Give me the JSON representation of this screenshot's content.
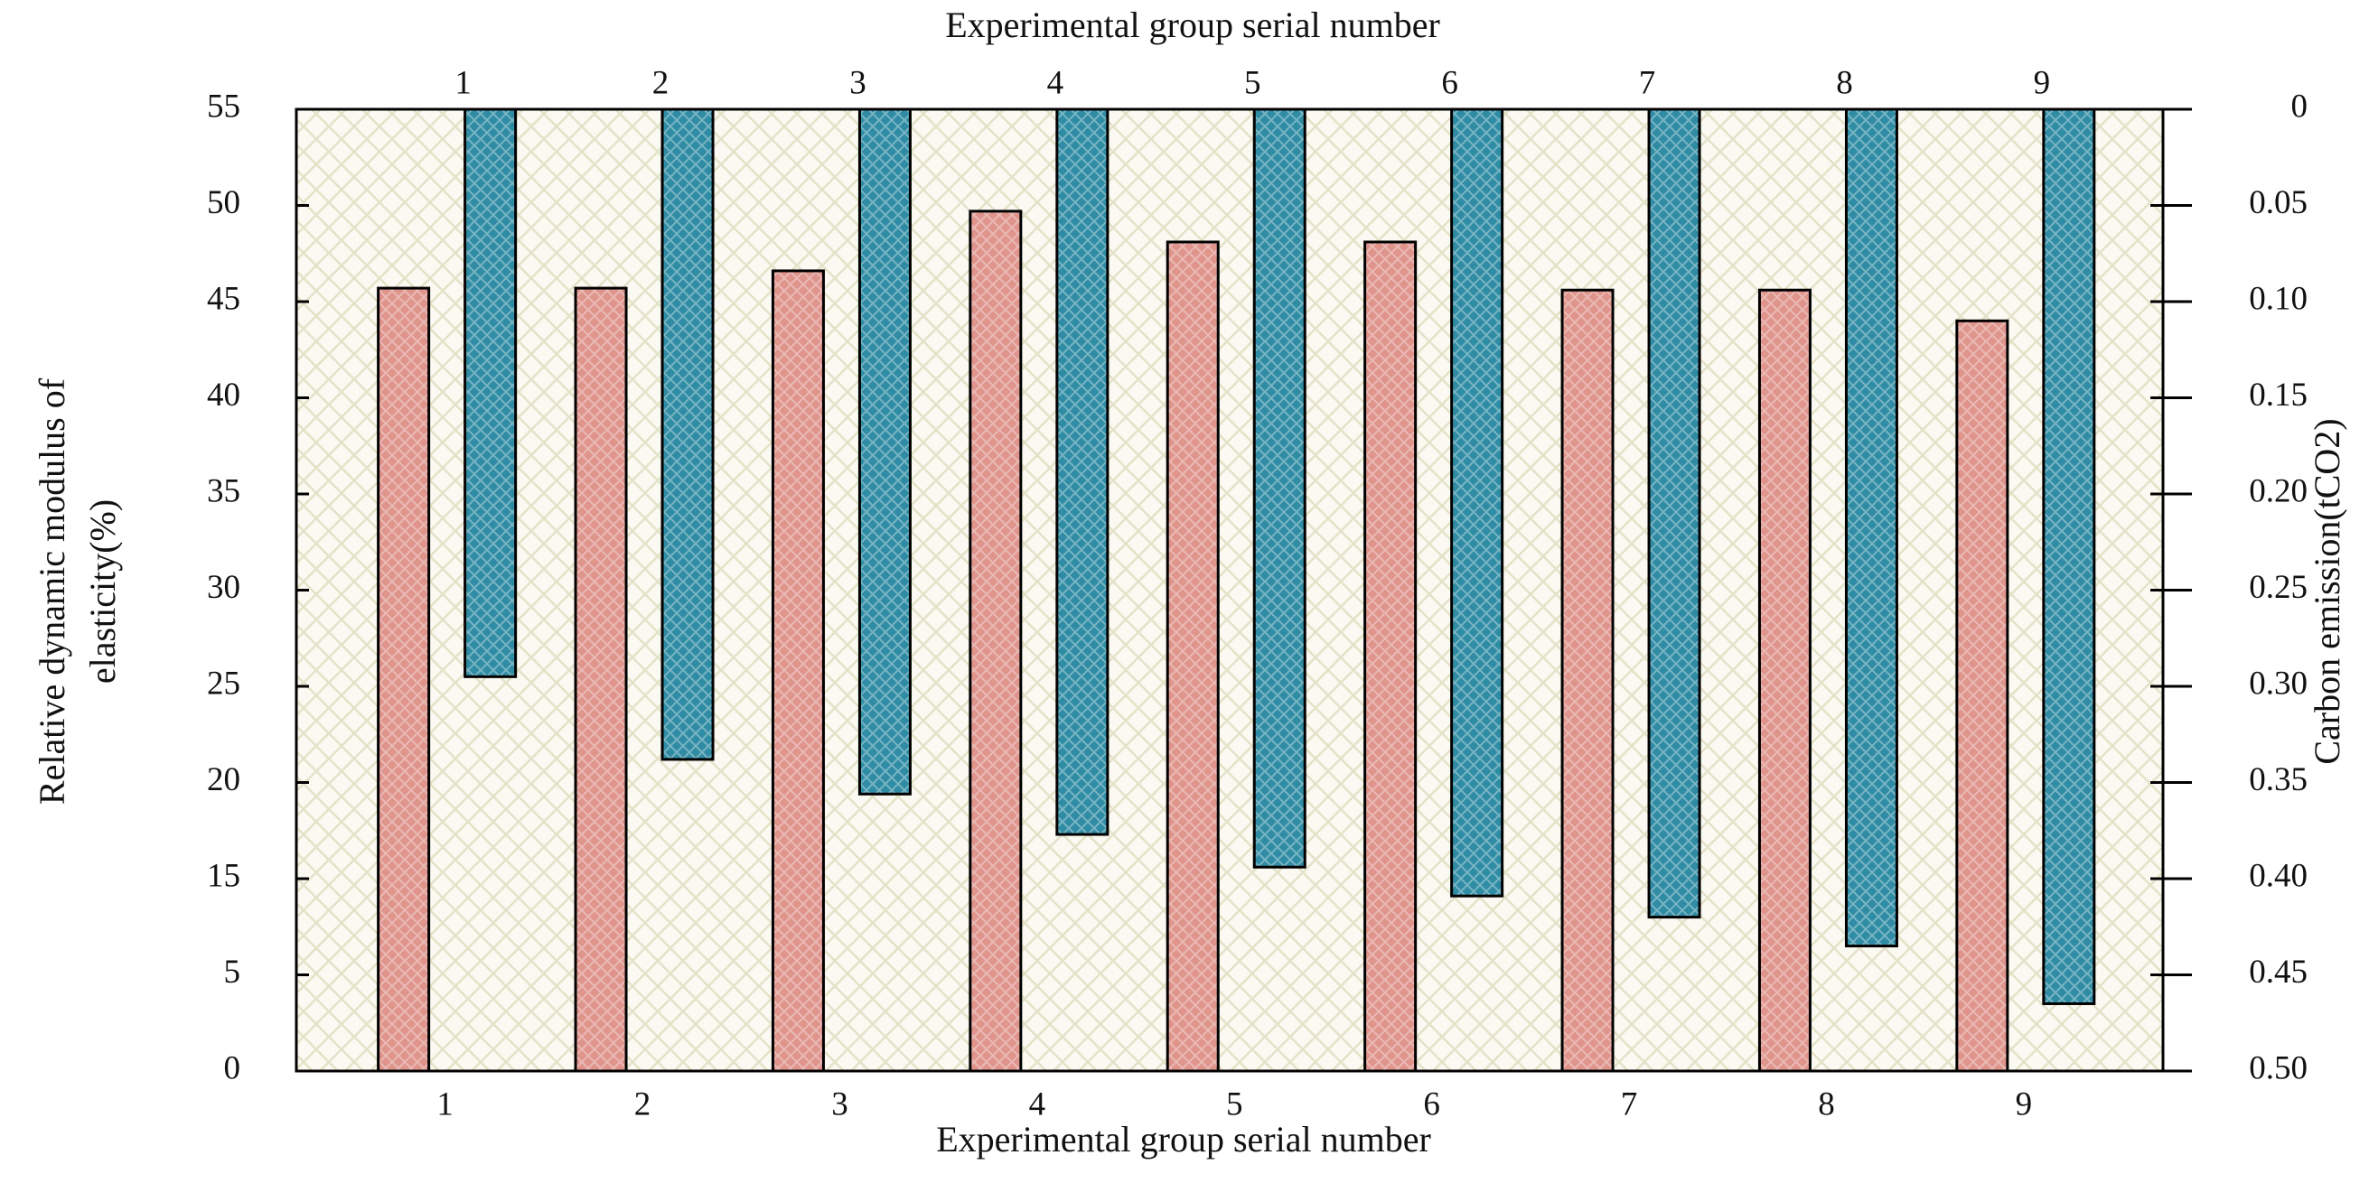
{
  "chart_data": {
    "type": "bar",
    "xlabel": "Experimental group serial number",
    "x2label": "Experimental group serial number",
    "ylabel": [
      "Relative dynamic modulus of",
      "elasticity(%)"
    ],
    "y2label": "Carbon emission(tCO2)",
    "categories": [
      "1",
      "2",
      "3",
      "4",
      "5",
      "6",
      "7",
      "8",
      "9"
    ],
    "x2_categories": [
      "1",
      "2",
      "3",
      "4",
      "5",
      "6",
      "7",
      "8",
      "9"
    ],
    "series": [
      {
        "color": "#df948c",
        "values": [
          45.7,
          45.7,
          46.6,
          49.7,
          48.1,
          48.1,
          45.6,
          45.6,
          44.0
        ]
      },
      {
        "color": "#2f8ca4",
        "axis": "y2",
        "values": [
          0.295,
          0.338,
          0.356,
          0.377,
          0.394,
          0.409,
          0.42,
          0.435,
          0.465
        ]
      }
    ],
    "ylim": [
      0,
      55
    ],
    "yticks": [
      0,
      5,
      15,
      20,
      25,
      30,
      35,
      40,
      45,
      50,
      55
    ],
    "y2lim": [
      0,
      0.5
    ],
    "y2_inverted": true,
    "y2ticks": [
      0,
      0.05,
      {
        "value": 0.1,
        "label": "0.10"
      },
      0.15,
      {
        "value": 0.2,
        "label": "0.20"
      },
      0.25,
      {
        "value": 0.3,
        "label": "0.30"
      },
      0.35,
      {
        "value": 0.4,
        "label": "0.40"
      },
      0.45,
      {
        "value": 0.5,
        "label": "0.50"
      }
    ]
  }
}
